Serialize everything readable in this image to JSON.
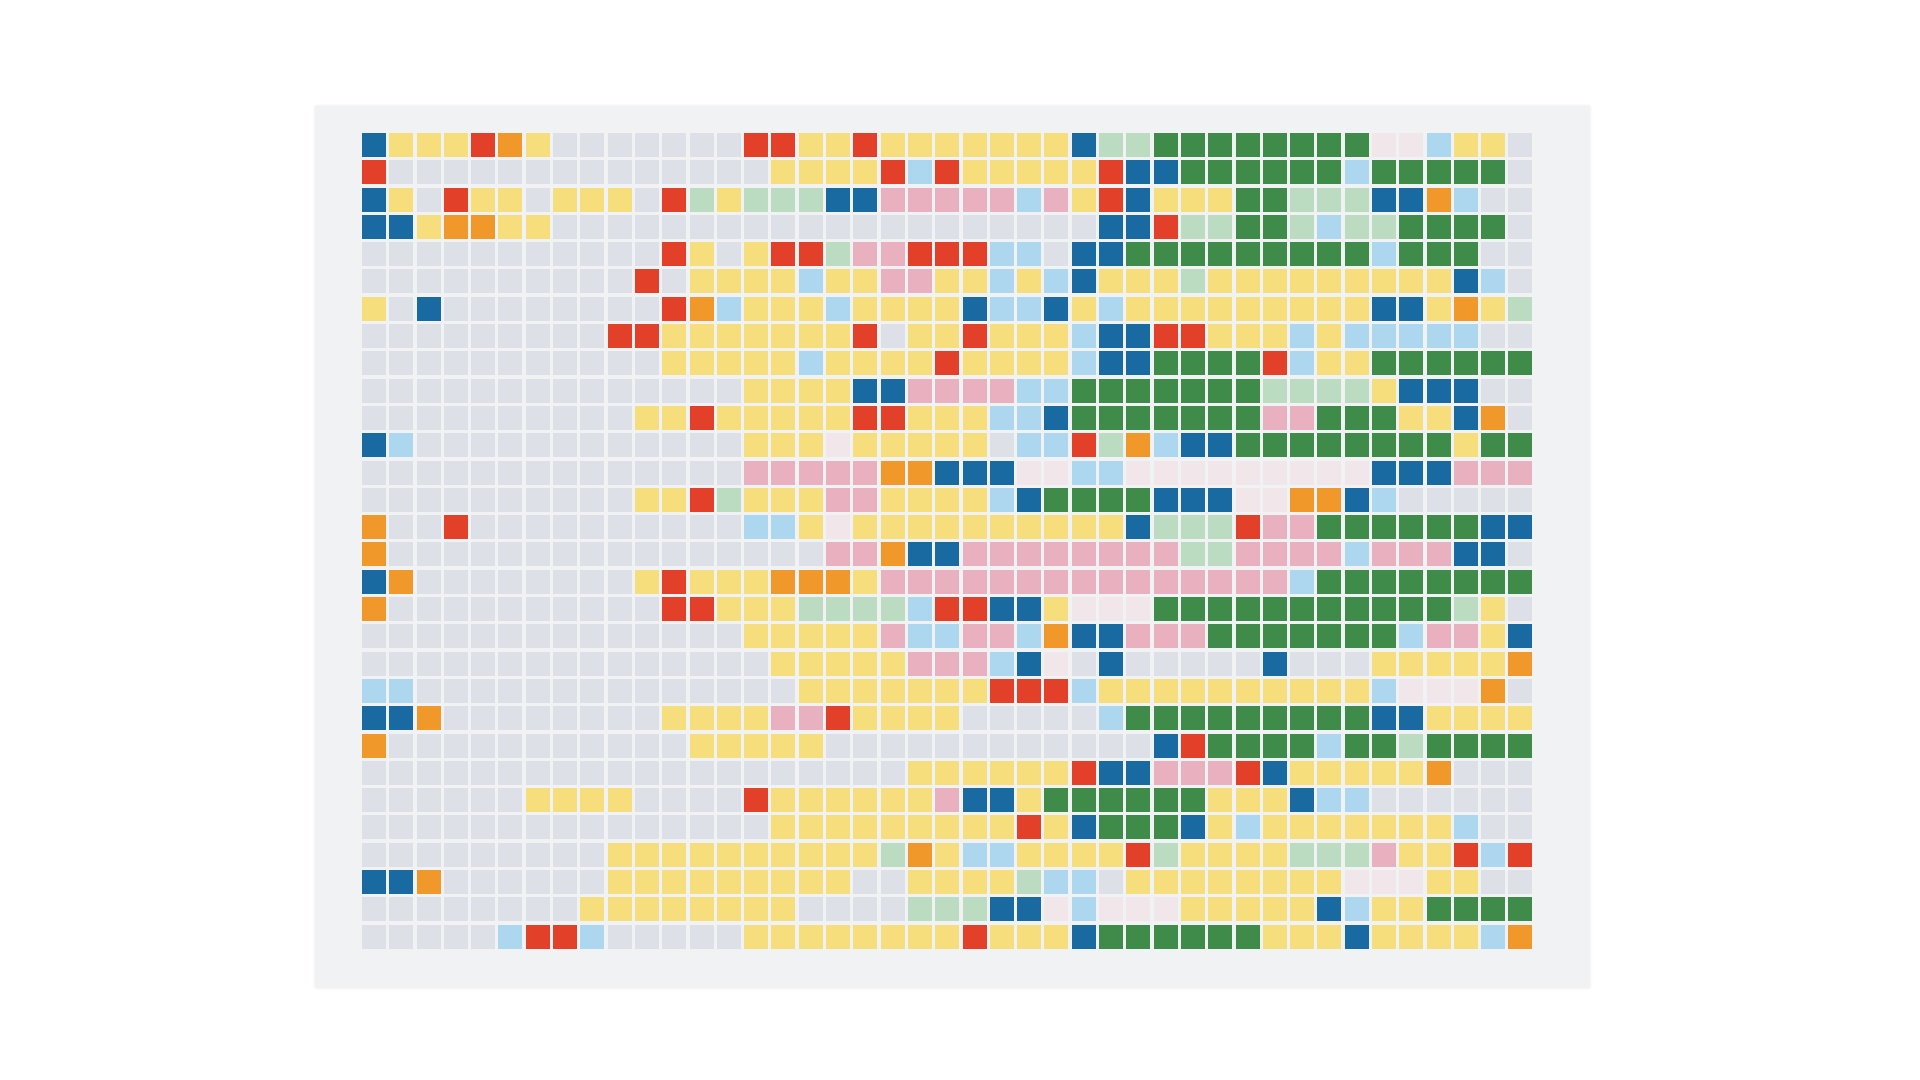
{
  "artwork": {
    "columns": 43,
    "rows": 30,
    "palette": {
      "g": "#dde1e7",
      "y": "#f6de7c",
      "r": "#e3402a",
      "b": "#1a6aa2",
      "o": "#f1982a",
      "l": "#acd7ef",
      "p": "#e9b0bf",
      "w": "#f1e6ea",
      "m": "#bcdcc1",
      "d": "#3f8b4a"
    },
    "grid": [
      "byyyroygggggggrryyryyyyyyybmmddddddddwwlyyg",
      "rggggggggggggggyyyyrlryyyyyrbbddddddlddddd",
      "bygryygyyygrmymmmbbppppplpyrbyyyddmmmbboli",
      "bbyooyyggggggggggggggggggggbbrmmddmlmmdddd",
      "gggggggggggrygyrrmpprrrllgbbdddddddddlddd",
      "ggggggggggrgyyyylyyppyylylbyyymyyyyyyyyybl",
      "ygbggggggggrolyyylyyyybllbylyyyyyyyyybbyoym",
      "gggggggggrryyyyyyyrgyyryyylbbrryyylylllll",
      "gggggggggggyyyyylyyyyryyyylbbddddrlyydddddd",
      "ggggggggggggggyyyybbpppplldddddddmmmmybbbgg",
      "ggggggggggyyryyyyyrryyyllbdddddddppdddyybog",
      "blggggggggggggyyywyyyyygllrmolbbddddddddyddb",
      "ggggggggggggggpppppoobbbwwllwwwwwwwwwbbbpppb",
      "ggggggggggyyrmyyyppyyyylbddddbbbwwooblgg",
      "oggrggggggggggllywyyyyyyyyyybmmmrppddddddbbo",
      "oggggggggggggggggppobbppppppppmmpppplpppbb",
      "boggggggggyryyyoooyppppppppppppppplddddddddb",
      "oggggggggggrryyymmmmlrrbbywwwdddddddddddmy",
      "ggggggggggggggyyyyypllpplobbpppdddddddlppyb",
      "gggggggggggggggyyyyyppplbwgbgggggbgggyyyyyo",
      "llggggggggggggggyyyyyyyrrrlyyyyyyyyyylwwwogg",
      "bboggggggggyyyyppryyyygggggldddddddddbbyyyy",
      "ogggggggggggyyyyyggggggggggggbrddddlddmdddd",
      "ggggggggggggggggggggyyyyyyrbbppprbyyyyyog",
      "ggggggyyyyggggryyyyyypbbyddddddyyybllg",
      "gggggggggggggggyyyyyyyyyrybdddbylyyyyyyyl",
      "gggggggggyyyyyyyyyymoyllyyyyrmyyyymmmpyyrlr",
      "bboggggggyyyyyyyyyggyyyymllgyyyyyyyywwwyyg",
      "ggggggggyyyyyyyyggggmmmbbwlwwwyyyyyblyyddddd",
      "ggggglrrlgggggyyyyyyyyryyybddddddyyybyyyylog"
    ]
  }
}
